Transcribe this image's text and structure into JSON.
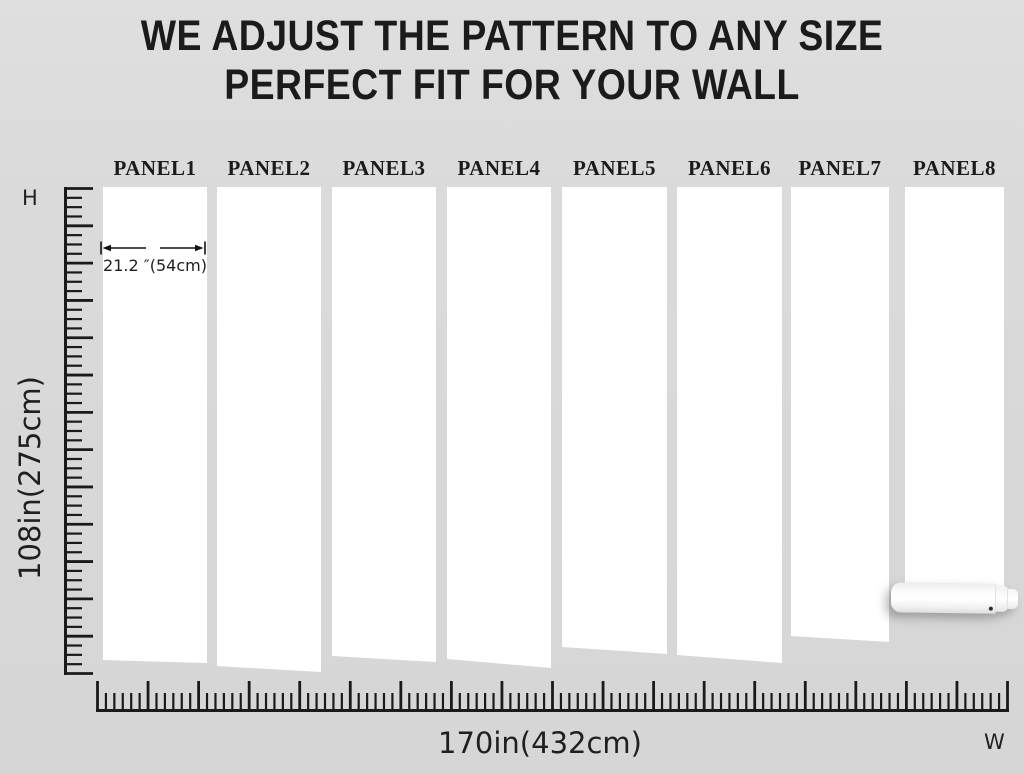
{
  "title": {
    "line1": "WE ADJUST THE PATTERN TO ANY SIZE",
    "line2": "PERFECT FIT FOR YOUR WALL"
  },
  "panels": {
    "labels": [
      "PANEL1",
      "PANEL2",
      "PANEL3",
      "PANEL4",
      "PANEL5",
      "PANEL6",
      "PANEL7",
      "PANEL8"
    ]
  },
  "dimensions": {
    "height_axis_letter": "H",
    "width_axis_letter": "W",
    "wall_height": "108in(275cm)",
    "wall_width": "170in(432cm)",
    "panel_width": "21.2 ″(54cm)"
  },
  "icons": {
    "width_dimension_arrow": "double-headed-arrow",
    "panel8_bottom": "wallpaper-roll"
  },
  "colors": {
    "background": "#d9d9d9",
    "panel": "#ffffff",
    "ink": "#1a1a1a"
  }
}
